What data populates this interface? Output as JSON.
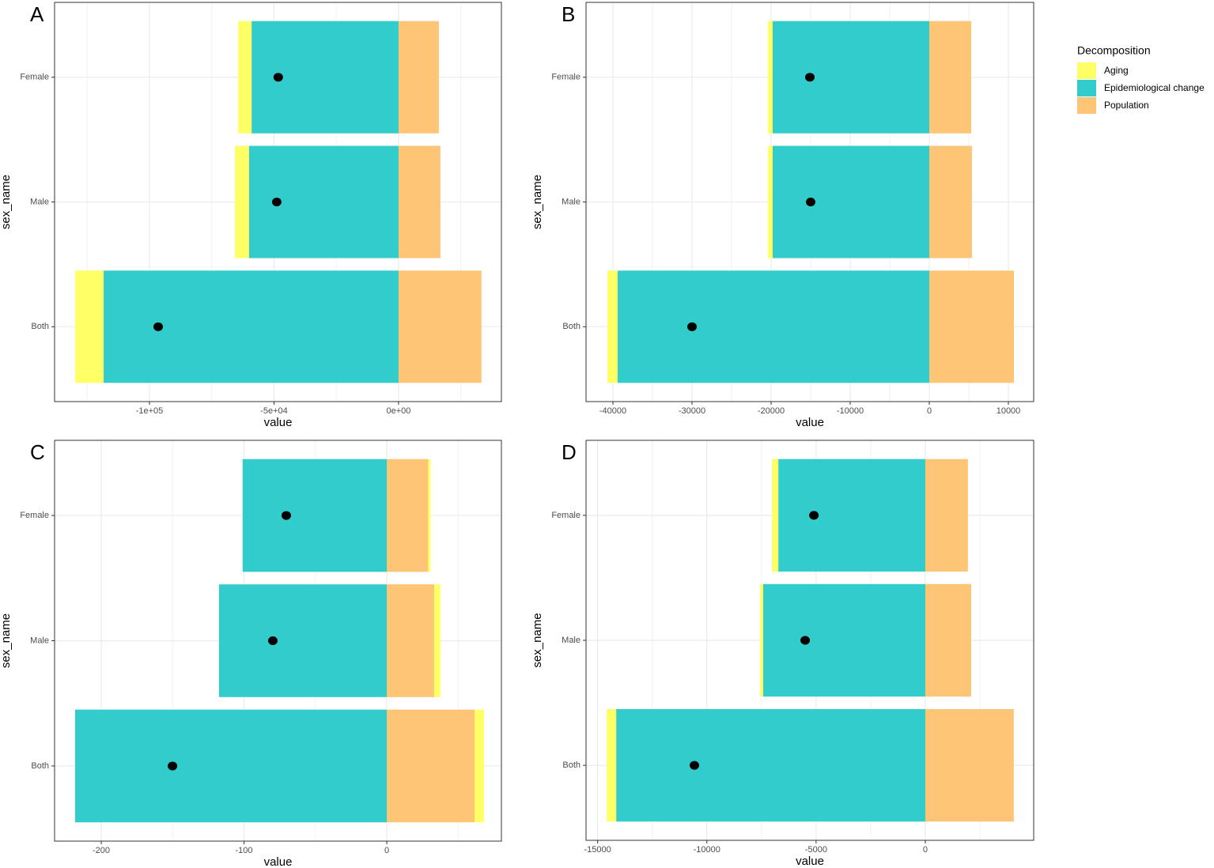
{
  "chart_data": [
    {
      "type": "bar",
      "orientation": "horizontal",
      "stacked": true,
      "label": "A",
      "xlabel": "value",
      "ylabel": "sex_name",
      "legend_title": "Decomposition",
      "categories": [
        "Female",
        "Male",
        "Both"
      ],
      "series": [
        {
          "name": "Aging",
          "color": "#ffff66",
          "values": [
            -5400,
            -5700,
            -11400
          ]
        },
        {
          "name": "Epidemiological change",
          "color": "#33cccc",
          "values": [
            -59000,
            -60000,
            -118400
          ]
        },
        {
          "name": "Population",
          "color": "#fdc575",
          "values": [
            16200,
            16800,
            33300
          ]
        }
      ],
      "points": {
        "color": "#000000",
        "values": [
          -48300,
          -48900,
          -96500
        ]
      },
      "xlim": [
        -138100,
        41300
      ],
      "xticks": [
        {
          "value": -100000,
          "label": "-1e+05"
        },
        {
          "value": -50000,
          "label": "-5e+04"
        },
        {
          "value": 0,
          "label": "0e+00"
        }
      ],
      "grid": true
    },
    {
      "type": "bar",
      "orientation": "horizontal",
      "stacked": true,
      "label": "B",
      "xlabel": "value",
      "ylabel": "sex_name",
      "categories": [
        "Female",
        "Male",
        "Both"
      ],
      "series": [
        {
          "color": "#ffff66",
          "values": [
            -600,
            -600,
            -1300
          ]
        },
        {
          "color": "#33cccc",
          "values": [
            -19800,
            -19800,
            -39400
          ]
        },
        {
          "color": "#fdc575",
          "values": [
            5300,
            5400,
            10700
          ]
        }
      ],
      "points": {
        "color": "#000000",
        "values": [
          -15100,
          -15000,
          -30000
        ]
      },
      "xlim": [
        -43400,
        13200
      ],
      "xticks": [
        -40000,
        -30000,
        -20000,
        -10000,
        0,
        10000
      ],
      "grid": true
    },
    {
      "type": "bar",
      "orientation": "horizontal",
      "stacked": true,
      "label": "C",
      "xlabel": "value",
      "ylabel": "sex_name",
      "categories": [
        "Female",
        "Male",
        "Both"
      ],
      "series": [
        {
          "color": "#ffff66",
          "values": [
            1.7,
            4.4,
            6.6
          ]
        },
        {
          "color": "#33cccc",
          "values": [
            -101,
            -117.5,
            -218.3
          ]
        },
        {
          "color": "#fdc575",
          "values": [
            29,
            33.2,
            61.5
          ]
        }
      ],
      "points": {
        "color": "#000000",
        "values": [
          -70.4,
          -79.8,
          -150.1
        ]
      },
      "xlim": [
        -232.7,
        80.3
      ],
      "xticks": [
        -200,
        -100,
        0
      ],
      "grid": true
    },
    {
      "type": "bar",
      "orientation": "horizontal",
      "stacked": true,
      "label": "D",
      "xlabel": "value",
      "ylabel": "sex_name",
      "categories": [
        "Female",
        "Male",
        "Both"
      ],
      "series": [
        {
          "color": "#ffff66",
          "values": [
            -290,
            -145,
            -435
          ]
        },
        {
          "color": "#33cccc",
          "values": [
            -6730,
            -7420,
            -14150
          ]
        },
        {
          "color": "#fdc575",
          "values": [
            1950,
            2100,
            4050
          ]
        }
      ],
      "points": {
        "color": "#000000",
        "values": [
          -5100,
          -5500,
          -10570
        ]
      },
      "xlim": [
        -15530,
        4960
      ],
      "xticks": [
        -15000,
        -10000,
        -5000,
        0
      ],
      "grid": true
    }
  ]
}
